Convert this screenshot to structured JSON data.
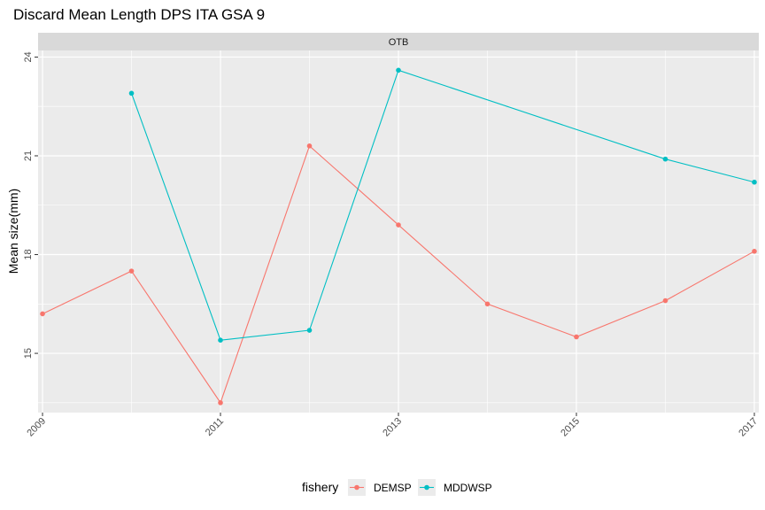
{
  "chart_data": {
    "type": "line",
    "title": "Discard Mean Length DPS ITA GSA 9",
    "facet": "OTB",
    "xlabel": "",
    "ylabel": "Mean size(mm)",
    "x_ticks": [
      "2009",
      "2011",
      "2013",
      "2015",
      "2017"
    ],
    "y_ticks": [
      15,
      18,
      21,
      24
    ],
    "xlim": [
      2008.95,
      2017.05
    ],
    "ylim": [
      13.2,
      24.2
    ],
    "grid": true,
    "legend": {
      "title": "fishery",
      "position": "bottom"
    },
    "series": [
      {
        "name": "DEMSP",
        "color": "#F8766D",
        "x": [
          2009,
          2010,
          2011,
          2012,
          2013,
          2014,
          2015,
          2016,
          2017
        ],
        "y": [
          16.2,
          17.5,
          13.5,
          21.3,
          18.9,
          16.5,
          15.5,
          16.6,
          18.1
        ]
      },
      {
        "name": "MDDWSP",
        "color": "#00BFC4",
        "x": [
          2010,
          2011,
          2012,
          2013,
          2016,
          2017
        ],
        "y": [
          22.9,
          15.4,
          15.7,
          23.6,
          20.9,
          20.2
        ]
      }
    ]
  }
}
